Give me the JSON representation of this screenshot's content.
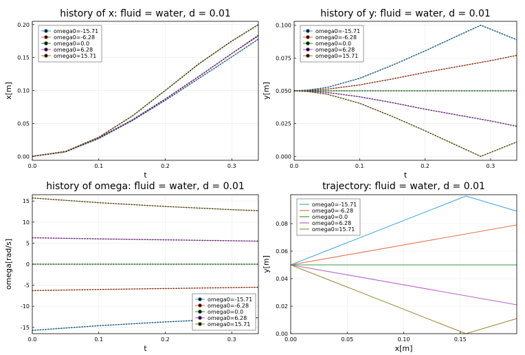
{
  "chart_data": [
    {
      "type": "line",
      "title": "history of x: fluid = water, d = 0.01",
      "xlabel": "t",
      "ylabel": "x[m]",
      "xlim": [
        0,
        0.34
      ],
      "ylim": [
        -0.006,
        0.205
      ],
      "xticks": [
        0.0,
        0.1,
        0.2,
        0.3
      ],
      "xtick_labels": [
        "0.0",
        "0.1",
        "0.2",
        "0.3"
      ],
      "yticks": [
        0.0,
        0.05,
        0.1,
        0.15,
        0.2
      ],
      "ytick_labels": [
        "0.00",
        "0.05",
        "0.10",
        "0.15",
        "0.20"
      ],
      "legend": "top-left",
      "markers": true,
      "series": [
        {
          "name": "omega0=-15.71",
          "color": "#4aa7dc",
          "x": [
            0,
            0.05,
            0.1,
            0.15,
            0.2,
            0.25,
            0.3,
            0.34
          ],
          "y": [
            0,
            0.007,
            0.027,
            0.054,
            0.085,
            0.118,
            0.151,
            0.178
          ]
        },
        {
          "name": "omega0=-6.28",
          "color": "#e6704a",
          "x": [
            0,
            0.05,
            0.1,
            0.15,
            0.2,
            0.25,
            0.3,
            0.34
          ],
          "y": [
            0,
            0.007,
            0.028,
            0.055,
            0.087,
            0.121,
            0.156,
            0.184
          ]
        },
        {
          "name": "omega0=0.0",
          "color": "#3a9a3a",
          "x": [
            0,
            0.05,
            0.1,
            0.15,
            0.2,
            0.25,
            0.3,
            0.34
          ],
          "y": [
            0,
            0.0075,
            0.029,
            0.061,
            0.1,
            0.14,
            0.175,
            0.2
          ]
        },
        {
          "name": "omega0=6.28",
          "color": "#b45fc8",
          "x": [
            0,
            0.05,
            0.1,
            0.15,
            0.2,
            0.25,
            0.3,
            0.34
          ],
          "y": [
            0,
            0.007,
            0.028,
            0.055,
            0.087,
            0.121,
            0.156,
            0.183
          ]
        },
        {
          "name": "omega0=15.71",
          "color": "#a08a3c",
          "x": [
            0,
            0.05,
            0.1,
            0.15,
            0.2,
            0.25,
            0.3,
            0.34
          ],
          "y": [
            0,
            0.0075,
            0.029,
            0.061,
            0.1,
            0.14,
            0.175,
            0.2
          ]
        }
      ]
    },
    {
      "type": "line",
      "title": "history of y: fluid = water, d = 0.01",
      "xlabel": "t",
      "ylabel": "y[m]",
      "xlim": [
        0,
        0.34
      ],
      "ylim": [
        -0.003,
        0.103
      ],
      "xticks": [
        0.0,
        0.1,
        0.2,
        0.3
      ],
      "xtick_labels": [
        "0.0",
        "0.1",
        "0.2",
        "0.3"
      ],
      "yticks": [
        0.0,
        0.025,
        0.05,
        0.075,
        0.1
      ],
      "ytick_labels": [
        "0.000",
        "0.025",
        "0.050",
        "0.075",
        "0.100"
      ],
      "legend": "top-left",
      "markers": true,
      "series": [
        {
          "name": "omega0=-15.71",
          "color": "#4aa7dc",
          "x": [
            0,
            0.02,
            0.05,
            0.1,
            0.15,
            0.2,
            0.25,
            0.285,
            0.34
          ],
          "y": [
            0.05,
            0.0505,
            0.0525,
            0.0595,
            0.0695,
            0.0805,
            0.092,
            0.1,
            0.089
          ]
        },
        {
          "name": "omega0=-6.28",
          "color": "#e6704a",
          "x": [
            0,
            0.02,
            0.05,
            0.1,
            0.15,
            0.2,
            0.25,
            0.3,
            0.34
          ],
          "y": [
            0.05,
            0.0502,
            0.0512,
            0.0545,
            0.059,
            0.064,
            0.0685,
            0.073,
            0.077
          ]
        },
        {
          "name": "omega0=0.0",
          "color": "#3a9a3a",
          "x": [
            0,
            0.34
          ],
          "y": [
            0.05,
            0.05
          ]
        },
        {
          "name": "omega0=6.28",
          "color": "#b45fc8",
          "x": [
            0,
            0.02,
            0.05,
            0.1,
            0.15,
            0.2,
            0.25,
            0.3,
            0.34
          ],
          "y": [
            0.05,
            0.0498,
            0.0488,
            0.0455,
            0.041,
            0.036,
            0.0315,
            0.027,
            0.023
          ]
        },
        {
          "name": "omega0=15.71",
          "color": "#a08a3c",
          "x": [
            0,
            0.02,
            0.05,
            0.1,
            0.15,
            0.2,
            0.25,
            0.285,
            0.34
          ],
          "y": [
            0.05,
            0.0495,
            0.0475,
            0.0405,
            0.0305,
            0.0195,
            0.008,
            0.0,
            0.011
          ]
        }
      ]
    },
    {
      "type": "line",
      "title": "history of omega: fluid = water, d = 0.01",
      "xlabel": "t",
      "ylabel": "omega[rad/s]",
      "xlim": [
        0,
        0.34
      ],
      "ylim": [
        -16.5,
        16.5
      ],
      "xticks": [
        0.0,
        0.1,
        0.2,
        0.3
      ],
      "xtick_labels": [
        "0.0",
        "0.1",
        "0.2",
        "0.3"
      ],
      "yticks": [
        -15,
        -10,
        -5,
        0,
        5,
        10,
        15
      ],
      "ytick_labels": [
        "-15",
        "-10",
        "-5",
        "0",
        "5",
        "10",
        "15"
      ],
      "legend": "bottom-right",
      "markers": true,
      "series": [
        {
          "name": "omega0=-15.71",
          "color": "#4aa7dc",
          "x": [
            0,
            0.1,
            0.2,
            0.3,
            0.34
          ],
          "y": [
            -15.71,
            -14.6,
            -13.7,
            -12.95,
            -12.7
          ]
        },
        {
          "name": "omega0=-6.28",
          "color": "#e6704a",
          "x": [
            0,
            0.1,
            0.2,
            0.3,
            0.34
          ],
          "y": [
            -6.28,
            -6.02,
            -5.78,
            -5.56,
            -5.47
          ]
        },
        {
          "name": "omega0=0.0",
          "color": "#3a9a3a",
          "x": [
            0,
            0.34
          ],
          "y": [
            0.0,
            0.0
          ]
        },
        {
          "name": "omega0=6.28",
          "color": "#b45fc8",
          "x": [
            0,
            0.1,
            0.2,
            0.3,
            0.34
          ],
          "y": [
            6.28,
            6.02,
            5.78,
            5.56,
            5.47
          ]
        },
        {
          "name": "omega0=15.71",
          "color": "#a08a3c",
          "x": [
            0,
            0.1,
            0.2,
            0.3,
            0.34
          ],
          "y": [
            15.71,
            14.6,
            13.7,
            12.95,
            12.7
          ]
        }
      ]
    },
    {
      "type": "line",
      "title": "trajectory: fluid = water, d = 0.01",
      "xlabel": "x[m]",
      "ylabel": "y[m]",
      "xlim": [
        0,
        0.2
      ],
      "ylim": [
        0,
        0.101
      ],
      "xticks": [
        0.0,
        0.05,
        0.1,
        0.15
      ],
      "xtick_labels": [
        "0.00",
        "0.05",
        "0.10",
        "0.15"
      ],
      "yticks": [
        0.0,
        0.02,
        0.04,
        0.06,
        0.08
      ],
      "ytick_labels": [
        "0.00",
        "0.02",
        "0.04",
        "0.06",
        "0.08"
      ],
      "legend": "top-left",
      "markers": false,
      "series": [
        {
          "name": "omega0=-15.71",
          "color": "#4aa7dc",
          "x": [
            0,
            0.155,
            0.2
          ],
          "y": [
            0.05,
            0.1,
            0.089
          ]
        },
        {
          "name": "omega0=-6.28",
          "color": "#e6704a",
          "x": [
            0,
            0.2
          ],
          "y": [
            0.05,
            0.079
          ]
        },
        {
          "name": "omega0=0.0",
          "color": "#3a9a3a",
          "x": [
            0,
            0.2
          ],
          "y": [
            0.05,
            0.05
          ]
        },
        {
          "name": "omega0=6.28",
          "color": "#b45fc8",
          "x": [
            0,
            0.2
          ],
          "y": [
            0.05,
            0.021
          ]
        },
        {
          "name": "omega0=15.71",
          "color": "#a08a3c",
          "x": [
            0,
            0.155,
            0.2
          ],
          "y": [
            0.05,
            0.0,
            0.011
          ]
        }
      ]
    }
  ]
}
